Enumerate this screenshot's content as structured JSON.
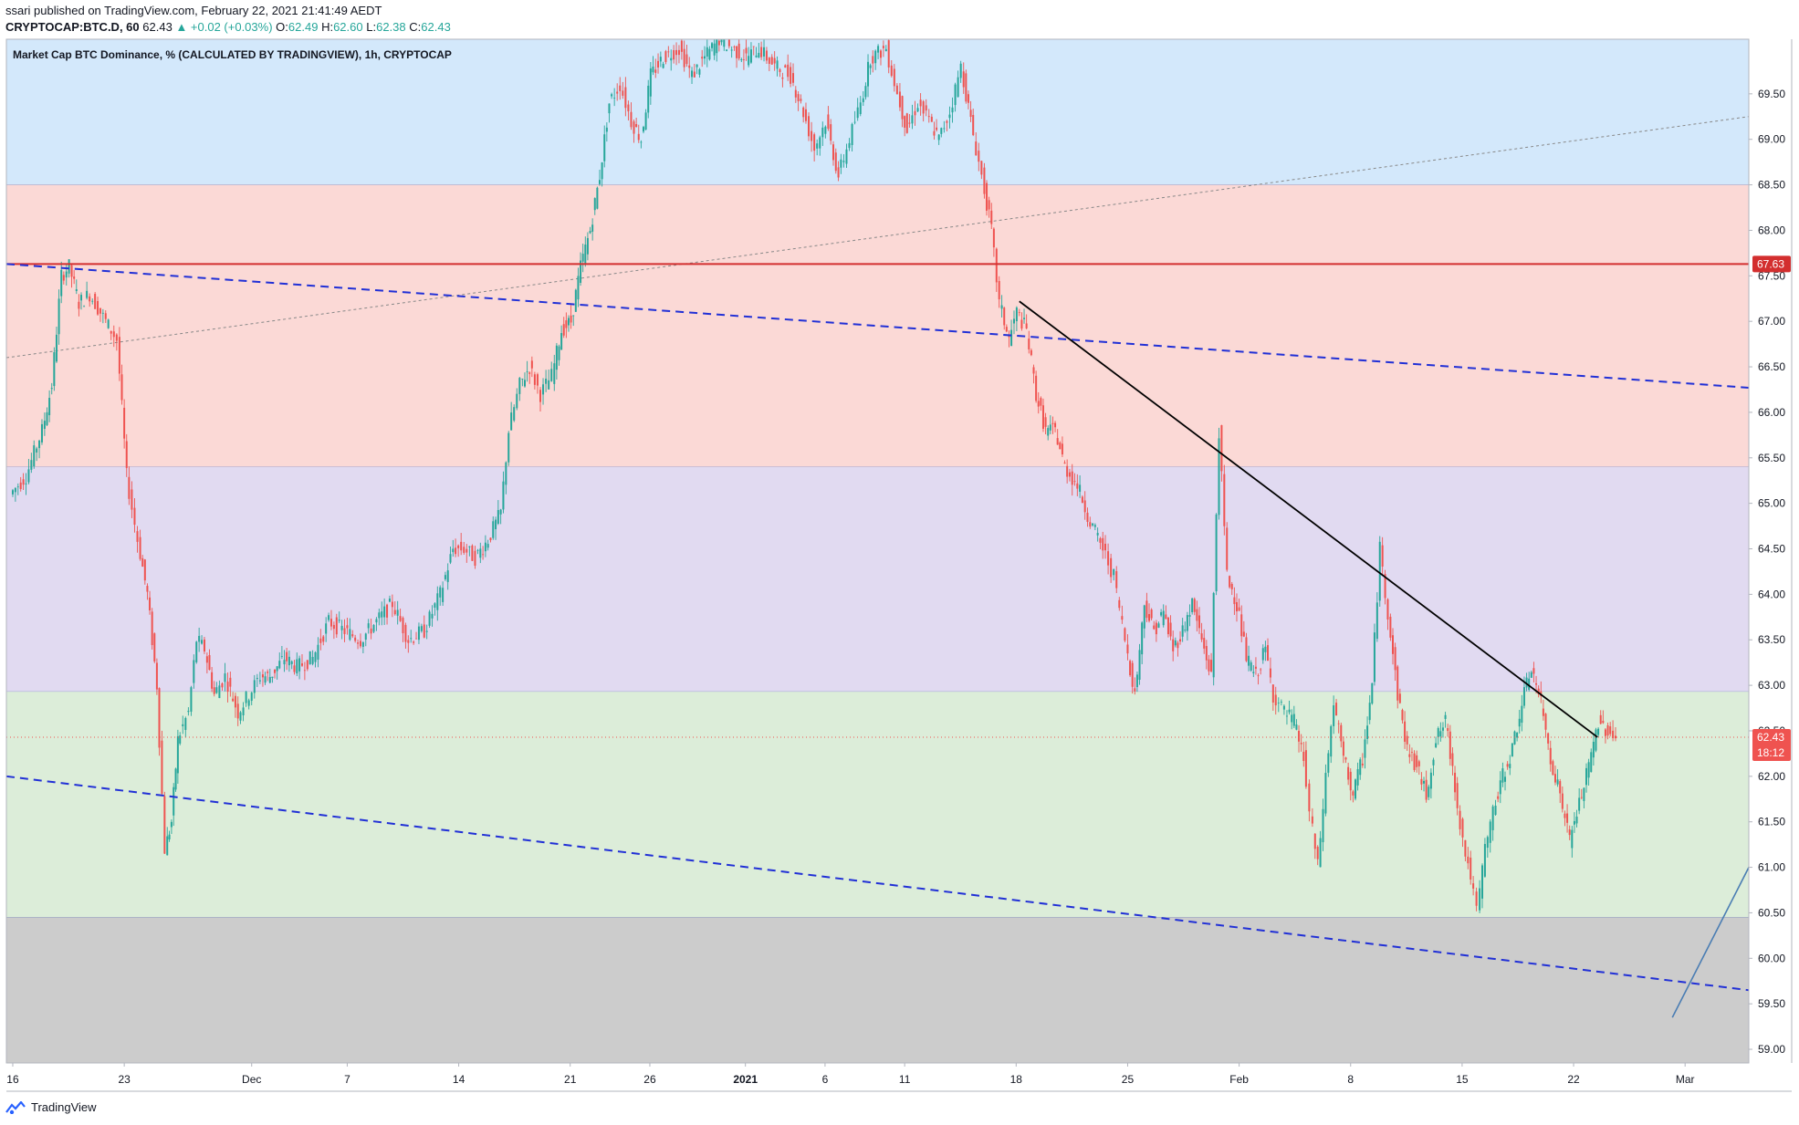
{
  "header": {
    "publisher_line": "ssari published on TradingView.com, February 22, 2021 21:41:49 AEDT",
    "symbol": "CRYPTOCAP:BTC.D, 60",
    "last": "62.43",
    "change": "▲ +0.02 (+0.03%)",
    "o_label": "O:",
    "o_val": "62.49",
    "h_label": "H:",
    "h_val": "62.60",
    "l_label": "L:",
    "l_val": "62.38",
    "c_label": "C:",
    "c_val": "62.43"
  },
  "footer": {
    "brand": "TradingView"
  },
  "colors": {
    "zone_blue": "#d3e8fb",
    "zone_red": "#fbd9d6",
    "zone_purple": "#e1daf1",
    "zone_green": "#dcedd9",
    "zone_gray": "#cccccc",
    "up_candle": "#26a69a",
    "down_candle": "#ef5350",
    "resistance": "#d32f2f",
    "channel": "#2130d6",
    "trendline": "#000000",
    "price_label": "#ef5350"
  },
  "chart_data": {
    "type": "candlestick",
    "title": "Market Cap BTC Dominance, % (CALCULATED BY TRADINGVIEW), 1h, CRYPTOCAP",
    "ylim": [
      58.85,
      70.1
    ],
    "y_ticks": [
      "69.50",
      "69.00",
      "68.50",
      "68.00",
      "67.50",
      "67.00",
      "66.50",
      "66.00",
      "65.50",
      "65.00",
      "64.50",
      "64.00",
      "63.50",
      "63.00",
      "62.50",
      "62.00",
      "61.50",
      "61.00",
      "60.50",
      "60.00",
      "59.50",
      "59.00"
    ],
    "x_ticks": [
      {
        "label": "16",
        "day": 0
      },
      {
        "label": "23",
        "day": 7
      },
      {
        "label": "Dec",
        "day": 15
      },
      {
        "label": "7",
        "day": 21
      },
      {
        "label": "14",
        "day": 28
      },
      {
        "label": "21",
        "day": 35
      },
      {
        "label": "26",
        "day": 40
      },
      {
        "label": "2021",
        "day": 46
      },
      {
        "label": "6",
        "day": 51
      },
      {
        "label": "11",
        "day": 56
      },
      {
        "label": "18",
        "day": 63
      },
      {
        "label": "25",
        "day": 70
      },
      {
        "label": "Feb",
        "day": 77
      },
      {
        "label": "8",
        "day": 84
      },
      {
        "label": "15",
        "day": 91
      },
      {
        "label": "22",
        "day": 98
      },
      {
        "label": "Mar",
        "day": 105
      }
    ],
    "x_range_days": [
      -0.4,
      109
    ],
    "zones": [
      {
        "from": 68.5,
        "to": 70.1,
        "color": "zone_blue"
      },
      {
        "from": 65.4,
        "to": 68.5,
        "color": "zone_red"
      },
      {
        "from": 62.93,
        "to": 65.4,
        "color": "zone_purple"
      },
      {
        "from": 60.45,
        "to": 62.93,
        "color": "zone_green"
      },
      {
        "from": 58.85,
        "to": 60.45,
        "color": "zone_gray"
      }
    ],
    "resistance_level": 67.63,
    "current_price": "62.43",
    "countdown": "18:12",
    "channel_lines": [
      {
        "x1": -0.4,
        "y1": 67.63,
        "x2": 109,
        "y2": 66.27
      },
      {
        "x1": -0.4,
        "y1": 62.0,
        "x2": 109,
        "y2": 59.65
      }
    ],
    "dotted_line": {
      "x1": -0.4,
      "y1": 66.6,
      "x2": 109,
      "y2": 69.25
    },
    "trend_line": {
      "x1": 63.2,
      "y1": 67.22,
      "x2": 99.5,
      "y2": 62.43
    },
    "projection_line": {
      "x1": 104.2,
      "y1": 59.35,
      "x2": 109,
      "y2": 61.0
    },
    "price_path": [
      [
        0,
        65.1
      ],
      [
        1,
        65.3
      ],
      [
        2,
        65.8
      ],
      [
        2.6,
        66.3
      ],
      [
        3.2,
        67.5
      ],
      [
        3.7,
        67.6
      ],
      [
        4.3,
        67.2
      ],
      [
        5,
        67.3
      ],
      [
        6,
        67.0
      ],
      [
        6.7,
        66.8
      ],
      [
        7.3,
        65.3
      ],
      [
        8,
        64.6
      ],
      [
        8.6,
        64.0
      ],
      [
        9.2,
        63.0
      ],
      [
        9.7,
        61.2
      ],
      [
        10.1,
        61.5
      ],
      [
        10.5,
        62.4
      ],
      [
        11.2,
        62.7
      ],
      [
        11.7,
        63.5
      ],
      [
        12.2,
        63.4
      ],
      [
        12.8,
        62.9
      ],
      [
        13.5,
        63.1
      ],
      [
        14.3,
        62.7
      ],
      [
        15,
        62.9
      ],
      [
        15.7,
        63.1
      ],
      [
        16.3,
        63.1
      ],
      [
        17.2,
        63.3
      ],
      [
        18,
        63.2
      ],
      [
        19,
        63.3
      ],
      [
        20,
        63.7
      ],
      [
        21,
        63.6
      ],
      [
        22,
        63.5
      ],
      [
        23,
        63.7
      ],
      [
        24,
        63.9
      ],
      [
        25,
        63.5
      ],
      [
        26,
        63.6
      ],
      [
        27,
        64.0
      ],
      [
        27.8,
        64.5
      ],
      [
        28.5,
        64.5
      ],
      [
        29.2,
        64.4
      ],
      [
        30,
        64.6
      ],
      [
        30.8,
        64.9
      ],
      [
        31.3,
        65.8
      ],
      [
        32,
        66.3
      ],
      [
        32.6,
        66.5
      ],
      [
        33.3,
        66.2
      ],
      [
        34,
        66.4
      ],
      [
        34.6,
        66.9
      ],
      [
        35.2,
        67.0
      ],
      [
        35.8,
        67.6
      ],
      [
        36.4,
        68.0
      ],
      [
        37,
        68.6
      ],
      [
        37.6,
        69.4
      ],
      [
        38.3,
        69.6
      ],
      [
        39,
        69.2
      ],
      [
        39.6,
        69.0
      ],
      [
        40.2,
        69.7
      ],
      [
        41,
        69.9
      ],
      [
        42,
        70.0
      ],
      [
        42.8,
        69.7
      ],
      [
        43.6,
        69.9
      ],
      [
        44.5,
        70.1
      ],
      [
        45.3,
        70.0
      ],
      [
        46.2,
        69.9
      ],
      [
        47,
        70.0
      ],
      [
        48,
        69.8
      ],
      [
        49,
        69.7
      ],
      [
        49.8,
        69.3
      ],
      [
        50.5,
        68.9
      ],
      [
        51.2,
        69.2
      ],
      [
        52,
        68.6
      ],
      [
        52.7,
        69.0
      ],
      [
        53.4,
        69.4
      ],
      [
        54,
        69.9
      ],
      [
        55,
        70.0
      ],
      [
        55.7,
        69.5
      ],
      [
        56.3,
        69.1
      ],
      [
        57,
        69.4
      ],
      [
        57.7,
        69.2
      ],
      [
        58.3,
        69.0
      ],
      [
        59,
        69.3
      ],
      [
        59.7,
        69.8
      ],
      [
        60.3,
        69.2
      ],
      [
        61,
        68.6
      ],
      [
        61.6,
        68.0
      ],
      [
        62.1,
        67.2
      ],
      [
        62.7,
        66.8
      ],
      [
        63.2,
        67.1
      ],
      [
        63.8,
        66.9
      ],
      [
        64.4,
        66.2
      ],
      [
        65,
        65.8
      ],
      [
        65.6,
        65.8
      ],
      [
        66.2,
        65.4
      ],
      [
        67,
        65.2
      ],
      [
        67.8,
        64.8
      ],
      [
        68.6,
        64.5
      ],
      [
        69.3,
        64.2
      ],
      [
        70,
        63.5
      ],
      [
        70.6,
        62.9
      ],
      [
        71.2,
        63.9
      ],
      [
        71.8,
        63.6
      ],
      [
        72.4,
        63.8
      ],
      [
        73,
        63.4
      ],
      [
        73.6,
        63.6
      ],
      [
        74.2,
        63.9
      ],
      [
        74.8,
        63.5
      ],
      [
        75.4,
        63.1
      ],
      [
        75.9,
        65.8
      ],
      [
        76.4,
        64.2
      ],
      [
        77,
        63.9
      ],
      [
        77.6,
        63.3
      ],
      [
        78.2,
        63.1
      ],
      [
        78.8,
        63.4
      ],
      [
        79.3,
        62.9
      ],
      [
        80,
        62.7
      ],
      [
        80.6,
        62.6
      ],
      [
        81.2,
        62.2
      ],
      [
        81.6,
        61.6
      ],
      [
        82.1,
        61.0
      ],
      [
        82.6,
        62.0
      ],
      [
        83.1,
        62.8
      ],
      [
        83.7,
        62.2
      ],
      [
        84.3,
        61.8
      ],
      [
        84.9,
        62.2
      ],
      [
        85.5,
        63.0
      ],
      [
        86,
        64.5
      ],
      [
        86.5,
        63.8
      ],
      [
        87.1,
        62.9
      ],
      [
        87.7,
        62.3
      ],
      [
        88.3,
        62.1
      ],
      [
        88.9,
        61.8
      ],
      [
        89.5,
        62.4
      ],
      [
        90.1,
        62.6
      ],
      [
        90.7,
        61.9
      ],
      [
        91.2,
        61.3
      ],
      [
        91.7,
        60.9
      ],
      [
        92.1,
        60.5
      ],
      [
        92.6,
        61.2
      ],
      [
        93.1,
        61.6
      ],
      [
        93.7,
        62.0
      ],
      [
        94.3,
        62.3
      ],
      [
        94.9,
        62.8
      ],
      [
        95.5,
        63.2
      ],
      [
        96.1,
        62.8
      ],
      [
        96.7,
        62.2
      ],
      [
        97.3,
        61.8
      ],
      [
        97.9,
        61.3
      ],
      [
        98.5,
        61.7
      ],
      [
        99.1,
        62.1
      ],
      [
        99.7,
        62.6
      ],
      [
        100.3,
        62.5
      ],
      [
        100.8,
        62.43
      ]
    ]
  }
}
